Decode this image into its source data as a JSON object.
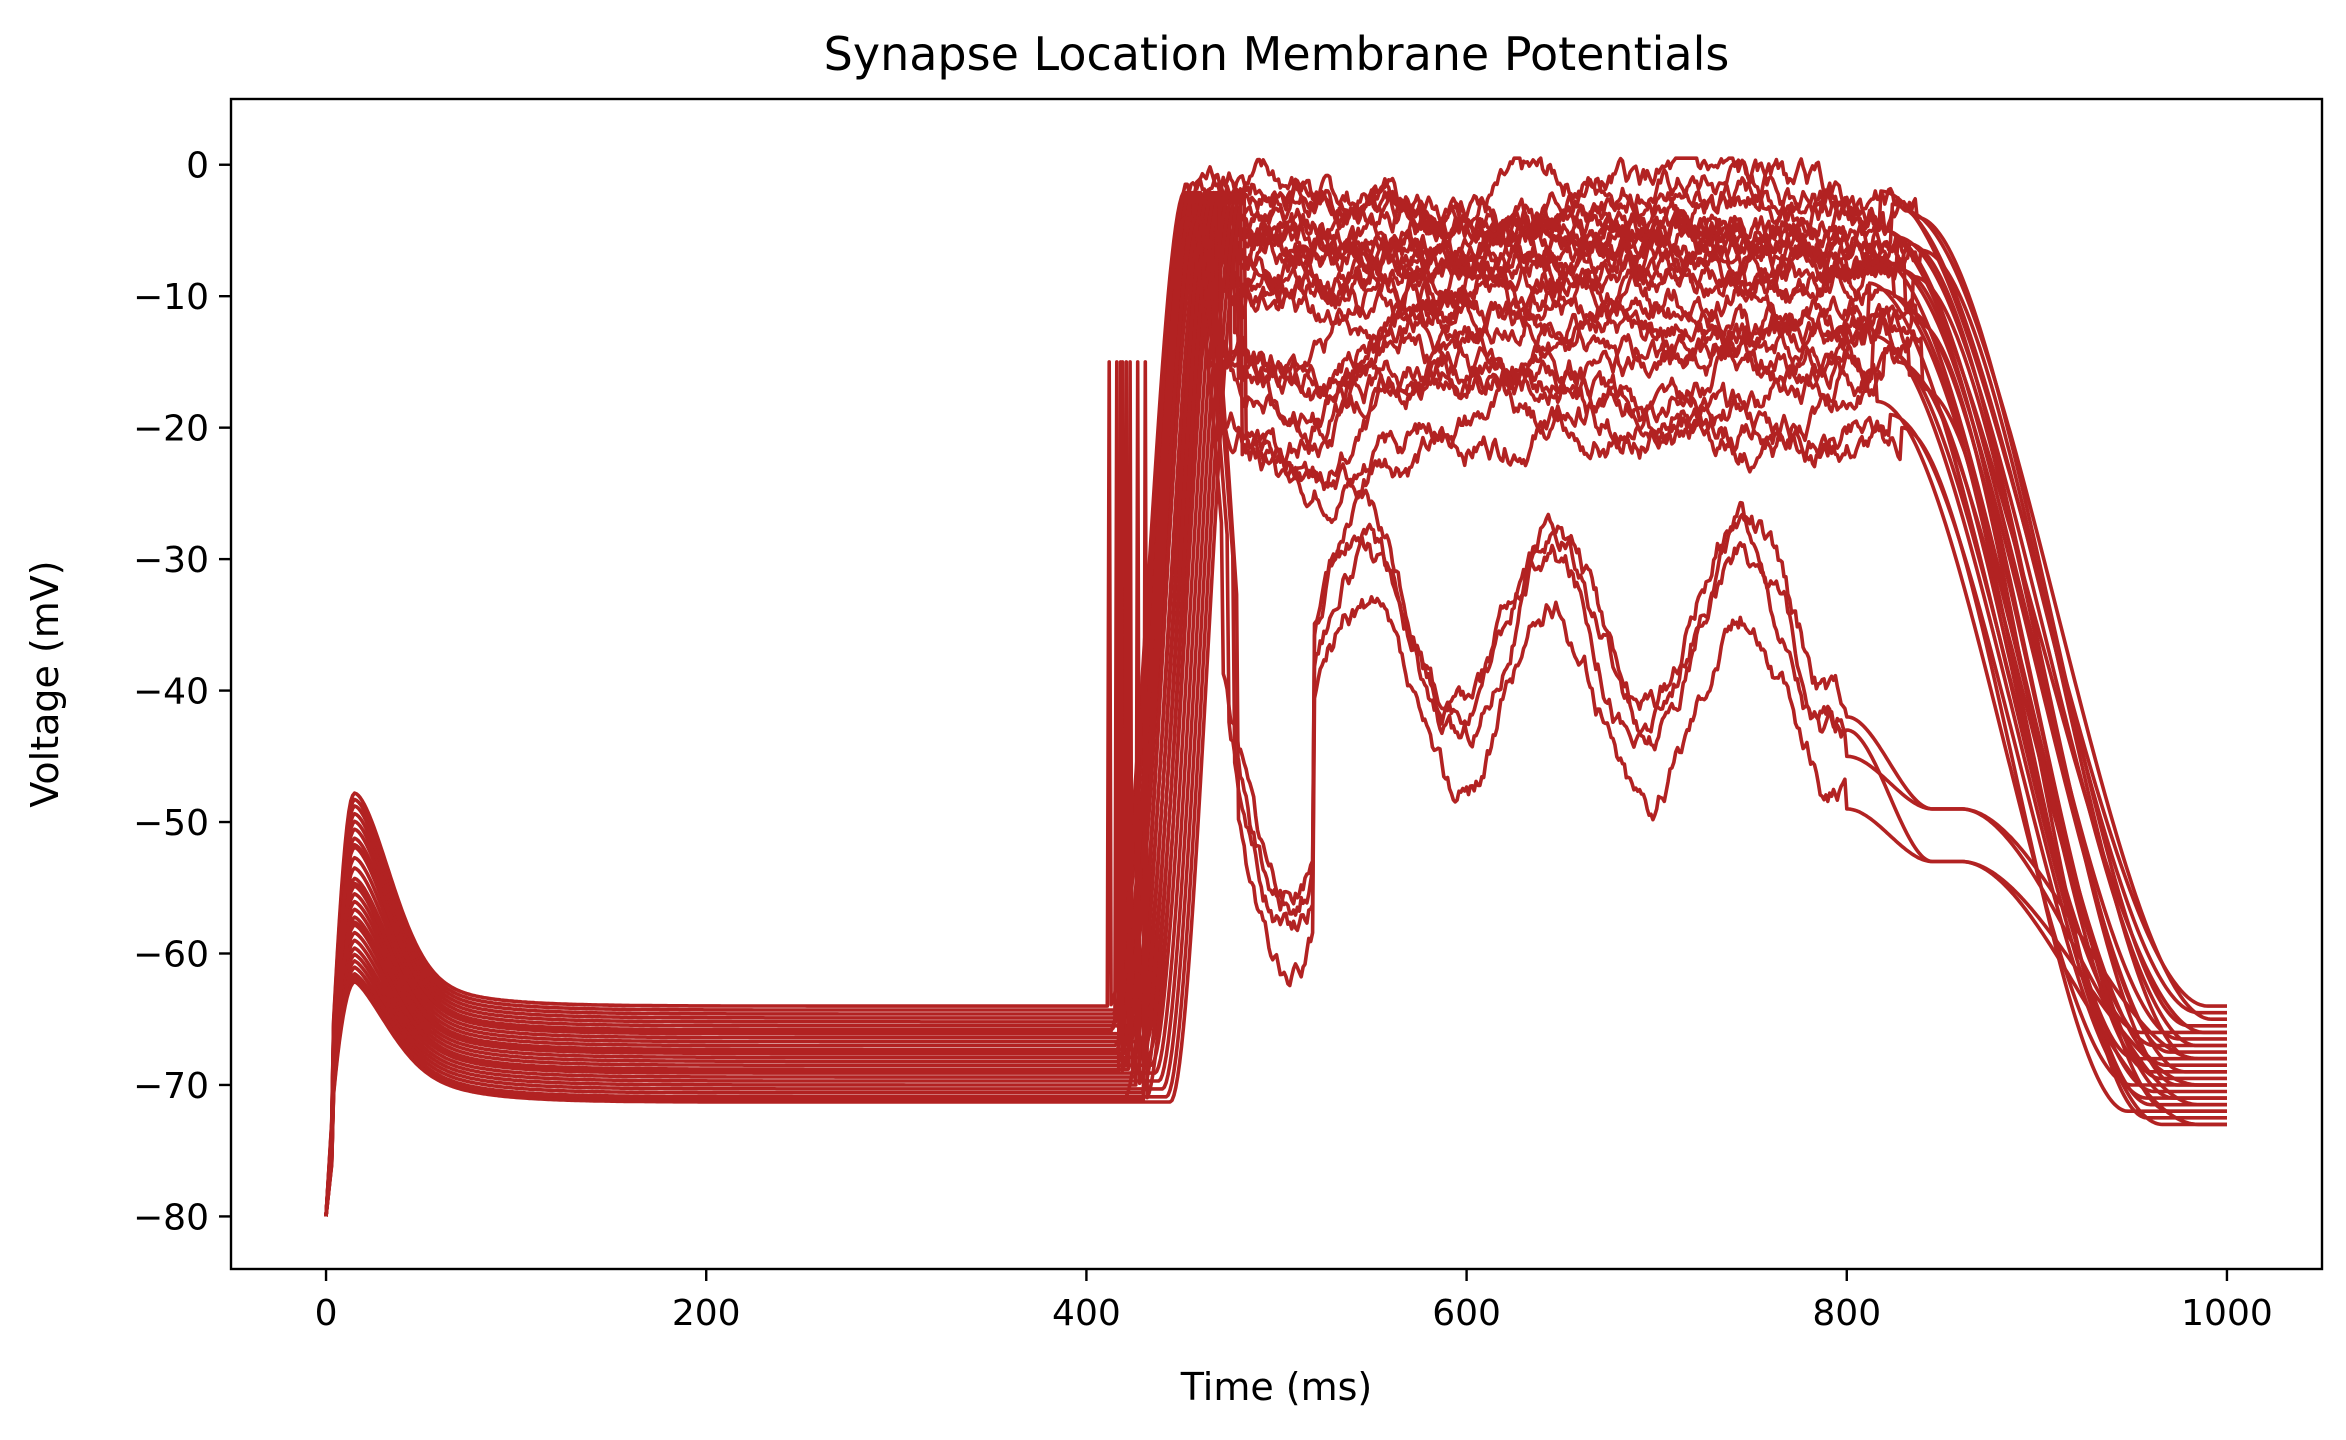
{
  "chart_data": {
    "type": "line",
    "title": "Synapse Location Membrane Potentials",
    "xlabel": "Time (ms)",
    "ylabel": "Voltage (mV)",
    "xlim": [
      -50,
      1050
    ],
    "ylim": [
      -84,
      5
    ],
    "xticks": [
      0,
      200,
      400,
      600,
      800,
      1000
    ],
    "yticks": [
      0,
      -10,
      -20,
      -30,
      -40,
      -50,
      -60,
      -70,
      -80
    ],
    "xtick_labels": [
      "0",
      "200",
      "400",
      "600",
      "800",
      "1000"
    ],
    "ytick_labels": [
      "0",
      "−10",
      "−20",
      "−30",
      "−40",
      "−50",
      "−60",
      "−70",
      "−80"
    ],
    "grid": false,
    "line_color": "#b22222",
    "series_count": 30,
    "series": [
      {
        "resting_mV": -64.0,
        "bump_peak_mV": -53.0,
        "rise_onset_ms": 412,
        "plateau_mV": -2.0,
        "decay_end_ms": 990,
        "final_mV": -64.0
      },
      {
        "resting_mV": -64.3,
        "bump_peak_mV": -53.5,
        "rise_onset_ms": 418,
        "plateau_mV": -3.0,
        "decay_end_ms": 985,
        "final_mV": -64.5
      },
      {
        "resting_mV": -64.6,
        "bump_peak_mV": -54.0,
        "rise_onset_ms": 414,
        "plateau_mV": -3.5,
        "decay_end_ms": 992,
        "final_mV": -65.0
      },
      {
        "resting_mV": -64.9,
        "bump_peak_mV": -54.6,
        "rise_onset_ms": 420,
        "plateau_mV": -4.0,
        "decay_end_ms": 980,
        "final_mV": -65.5
      },
      {
        "resting_mV": -65.2,
        "bump_peak_mV": -55.2,
        "rise_onset_ms": 416,
        "plateau_mV": -4.5,
        "decay_end_ms": 988,
        "final_mV": -66.0
      },
      {
        "resting_mV": -65.5,
        "bump_peak_mV": -55.8,
        "rise_onset_ms": 424,
        "plateau_mV": -5.0,
        "decay_end_ms": 975,
        "final_mV": -66.5
      },
      {
        "resting_mV": -65.8,
        "bump_peak_mV": -56.5,
        "rise_onset_ms": 413,
        "plateau_mV": -5.5,
        "decay_end_ms": 984,
        "final_mV": -67.0
      },
      {
        "resting_mV": -66.1,
        "bump_peak_mV": -57.2,
        "rise_onset_ms": 426,
        "plateau_mV": -6.0,
        "decay_end_ms": 970,
        "final_mV": -67.5
      },
      {
        "resting_mV": -66.4,
        "bump_peak_mV": -58.0,
        "rise_onset_ms": 419,
        "plateau_mV": -6.5,
        "decay_end_ms": 982,
        "final_mV": -68.0
      },
      {
        "resting_mV": -66.7,
        "bump_peak_mV": -58.8,
        "rise_onset_ms": 428,
        "plateau_mV": -7.0,
        "decay_end_ms": 968,
        "final_mV": -68.5
      },
      {
        "resting_mV": -67.0,
        "bump_peak_mV": -59.6,
        "rise_onset_ms": 415,
        "plateau_mV": -7.5,
        "decay_end_ms": 978,
        "final_mV": -69.0
      },
      {
        "resting_mV": -67.3,
        "bump_peak_mV": -60.2,
        "rise_onset_ms": 430,
        "plateau_mV": -8.0,
        "decay_end_ms": 965,
        "final_mV": -69.5
      },
      {
        "resting_mV": -67.6,
        "bump_peak_mV": -60.8,
        "rise_onset_ms": 421,
        "plateau_mV": -8.5,
        "decay_end_ms": 974,
        "final_mV": -70.0
      },
      {
        "resting_mV": -67.9,
        "bump_peak_mV": -61.4,
        "rise_onset_ms": 432,
        "plateau_mV": -9.0,
        "decay_end_ms": 962,
        "final_mV": -70.5
      },
      {
        "resting_mV": -68.2,
        "bump_peak_mV": -62.0,
        "rise_onset_ms": 417,
        "plateau_mV": -9.5,
        "decay_end_ms": 972,
        "final_mV": -71.0
      },
      {
        "resting_mV": -68.5,
        "bump_peak_mV": -62.6,
        "rise_onset_ms": 434,
        "plateau_mV": -10.0,
        "decay_end_ms": 960,
        "final_mV": -71.5
      },
      {
        "resting_mV": -68.8,
        "bump_peak_mV": -63.2,
        "rise_onset_ms": 423,
        "plateau_mV": -11.0,
        "decay_end_ms": 970,
        "final_mV": -72.0
      },
      {
        "resting_mV": -69.1,
        "bump_peak_mV": -63.8,
        "rise_onset_ms": 436,
        "plateau_mV": -12.0,
        "decay_end_ms": 958,
        "final_mV": -72.5
      },
      {
        "resting_mV": -69.4,
        "bump_peak_mV": -64.4,
        "rise_onset_ms": 425,
        "plateau_mV": -13.0,
        "decay_end_ms": 966,
        "final_mV": -73.0
      },
      {
        "resting_mV": -69.7,
        "bump_peak_mV": -65.0,
        "rise_onset_ms": 438,
        "plateau_mV": -14.0,
        "decay_end_ms": 955,
        "final_mV": -66.0
      },
      {
        "resting_mV": -70.0,
        "bump_peak_mV": -65.5,
        "rise_onset_ms": 427,
        "plateau_mV": -15.0,
        "decay_end_ms": 962,
        "final_mV": -67.0
      },
      {
        "resting_mV": -70.3,
        "bump_peak_mV": -66.0,
        "rise_onset_ms": 440,
        "plateau_mV": -16.0,
        "decay_end_ms": 952,
        "final_mV": -68.0
      },
      {
        "resting_mV": -70.6,
        "bump_peak_mV": -66.5,
        "rise_onset_ms": 429,
        "plateau_mV": -17.0,
        "decay_end_ms": 960,
        "final_mV": -69.0
      },
      {
        "resting_mV": -70.9,
        "bump_peak_mV": -67.0,
        "rise_onset_ms": 442,
        "plateau_mV": -18.0,
        "decay_end_ms": 950,
        "final_mV": -70.0
      },
      {
        "resting_mV": -71.1,
        "bump_peak_mV": -67.3,
        "rise_onset_ms": 431,
        "plateau_mV": -19.0,
        "decay_end_ms": 958,
        "final_mV": -71.0
      },
      {
        "resting_mV": -71.3,
        "bump_peak_mV": -67.6,
        "rise_onset_ms": 444,
        "plateau_mV": -20.0,
        "decay_end_ms": 948,
        "final_mV": -72.0
      },
      {
        "resting_mV": -66.0,
        "bump_peak_mV": -57.0,
        "rise_onset_ms": 412,
        "plateau_mV": -34.0,
        "decay_end_ms": 975,
        "final_mV": -68.0
      },
      {
        "resting_mV": -67.5,
        "bump_peak_mV": -60.0,
        "rise_onset_ms": 415,
        "plateau_mV": -35.0,
        "decay_end_ms": 970,
        "final_mV": -70.0
      },
      {
        "resting_mV": -69.0,
        "bump_peak_mV": -63.0,
        "rise_onset_ms": 418,
        "plateau_mV": -37.0,
        "decay_end_ms": 965,
        "final_mV": -71.5
      },
      {
        "resting_mV": -71.0,
        "bump_peak_mV": -66.5,
        "rise_onset_ms": 420,
        "plateau_mV": -41.0,
        "decay_end_ms": 960,
        "final_mV": -73.0
      }
    ]
  }
}
